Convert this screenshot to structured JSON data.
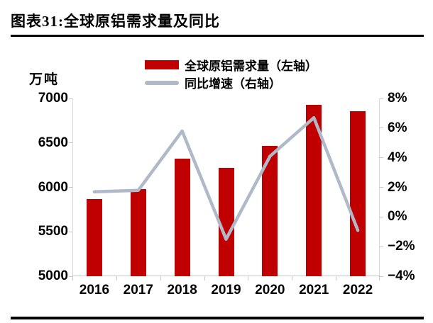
{
  "header": {
    "title": "图表31:全球原铝需求量及同比"
  },
  "colors": {
    "bar": "#C00000",
    "line": "#AFB9C8",
    "axis": "#D9D9D9",
    "rule": "#000000"
  },
  "chart_data": {
    "type": "bar+line",
    "title": "图表31:全球原铝需求量及同比",
    "categories": [
      "2016",
      "2017",
      "2018",
      "2019",
      "2020",
      "2021",
      "2022"
    ],
    "series": [
      {
        "name": "全球原铝需求量（左轴）",
        "type": "bar",
        "axis": "left",
        "color": "#C00000",
        "values": [
          5870,
          5980,
          6320,
          6220,
          6470,
          6930,
          6860
        ]
      },
      {
        "name": "同比增速（右轴）",
        "type": "line",
        "axis": "right",
        "color": "#AFB9C8",
        "values": [
          1.7,
          1.8,
          5.8,
          -1.5,
          4.1,
          6.7,
          -0.9
        ]
      }
    ],
    "left_axis": {
      "unit_label": "万吨",
      "min": 5000,
      "max": 7000,
      "tick_values": [
        7000,
        6500,
        6000,
        5500,
        5000
      ],
      "tick_labels": [
        "7000",
        "6500",
        "6000",
        "5500",
        "5000"
      ]
    },
    "right_axis": {
      "min": -4,
      "max": 8,
      "tick_values": [
        8,
        6,
        4,
        2,
        0,
        -2,
        -4
      ],
      "tick_labels": [
        "8%",
        "6%",
        "4%",
        "2%",
        "0%",
        "−2%",
        "−4%"
      ]
    },
    "grid": false,
    "legend_position": "top-center"
  }
}
